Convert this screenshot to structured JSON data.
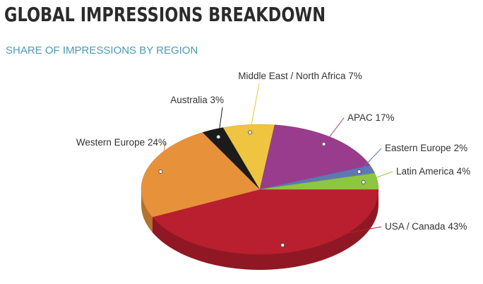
{
  "chart_data": {
    "type": "pie3d",
    "title": "GLOBAL IMPRESSIONS BREAKDOWN",
    "subtitle": "SHARE OF IMPRESSIONS BY REGION",
    "categories": [
      "USA / Canada",
      "Western Europe",
      "Australia",
      "Middle East / North Africa",
      "APAC",
      "Eastern Europe",
      "Latin America"
    ],
    "values": [
      43,
      24,
      3,
      7,
      17,
      2,
      4
    ],
    "value_labels": [
      "43%",
      "24%",
      "3%",
      "7%",
      "17%",
      "2%",
      "4%"
    ],
    "colors": [
      "#b91f2e",
      "#e8913b",
      "#1b1b1b",
      "#eec440",
      "#9a3c8d",
      "#5f77b4",
      "#8dc63f"
    ]
  }
}
